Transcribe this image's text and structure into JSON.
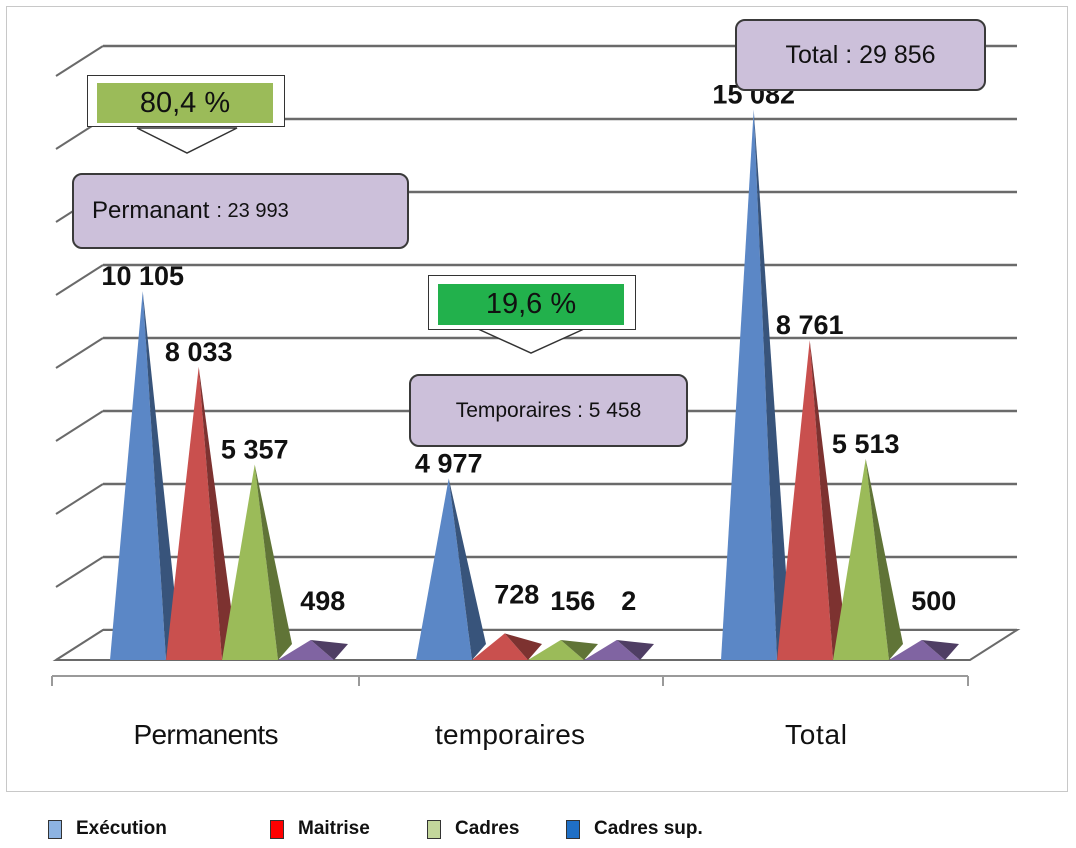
{
  "chart_data": {
    "type": "bar",
    "style": "3d-pyramid",
    "categories": [
      "Permanents",
      "temporaires",
      "Total"
    ],
    "series": [
      {
        "name": "Exécution",
        "color": "#5b87c6",
        "values": [
          10105,
          4977,
          15082
        ],
        "labels": [
          "10 105",
          "4 977",
          "15 082"
        ]
      },
      {
        "name": "Maitrise",
        "color": "#c9504e",
        "values": [
          8033,
          728,
          8761
        ],
        "labels": [
          "8 033",
          "728",
          "8 761"
        ]
      },
      {
        "name": "Cadres",
        "color": "#9bbb59",
        "values": [
          5357,
          156,
          5513
        ],
        "labels": [
          "5 357",
          "156",
          "5 513"
        ]
      },
      {
        "name": "Cadres sup.",
        "color": "#8064a2",
        "values": [
          498,
          2,
          500
        ],
        "labels": [
          "498",
          "2",
          "500"
        ]
      }
    ],
    "ylim": [
      0,
      16000
    ],
    "grid": true,
    "legend_position": "bottom",
    "legend_colors": [
      "#8db3e2",
      "#ff0000",
      "#c3d69b",
      "#1f6fc5"
    ],
    "annotations": {
      "total": "Total : 29 856",
      "permanent_pct": "80,4 %",
      "permanent_name": "Permanant",
      "permanent_value": ": 23 993",
      "temp_pct": "19,6 %",
      "temp_label": "Temporaires : 5 458"
    },
    "colors": {
      "pct_permanent": "#9bbb59",
      "pct_temp": "#22b14c",
      "callout": "#ccc0da"
    }
  }
}
